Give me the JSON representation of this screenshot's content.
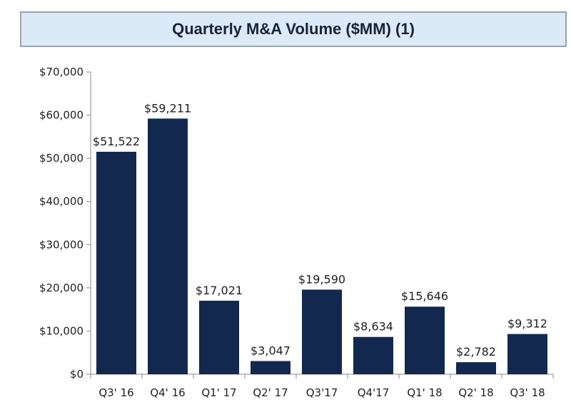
{
  "chart_data": {
    "type": "bar",
    "title": "Quarterly M&A Volume ($MM) (1)",
    "categories": [
      "Q3' 16",
      "Q4' 16",
      "Q1' 17",
      "Q2' 17",
      "Q3'17",
      "Q4'17",
      "Q1' 18",
      "Q2' 18",
      "Q3' 18"
    ],
    "values": [
      51522,
      59211,
      17021,
      3047,
      19590,
      8634,
      15646,
      2782,
      9312
    ],
    "data_labels": [
      "$51,522",
      "$59,211",
      "$17,021",
      "$3,047",
      "$19,590",
      "$8,634",
      "$15,646",
      "$2,782",
      "$9,312"
    ],
    "y_ticks": [
      0,
      10000,
      20000,
      30000,
      40000,
      50000,
      60000,
      70000
    ],
    "y_tick_labels": [
      "$0",
      "$10,000",
      "$20,000",
      "$30,000",
      "$40,000",
      "$50,000",
      "$60,000",
      "$70,000"
    ],
    "ylim": [
      0,
      70000
    ],
    "xlabel": "",
    "ylabel": "",
    "grid": false,
    "bar_color": "#13284f"
  }
}
